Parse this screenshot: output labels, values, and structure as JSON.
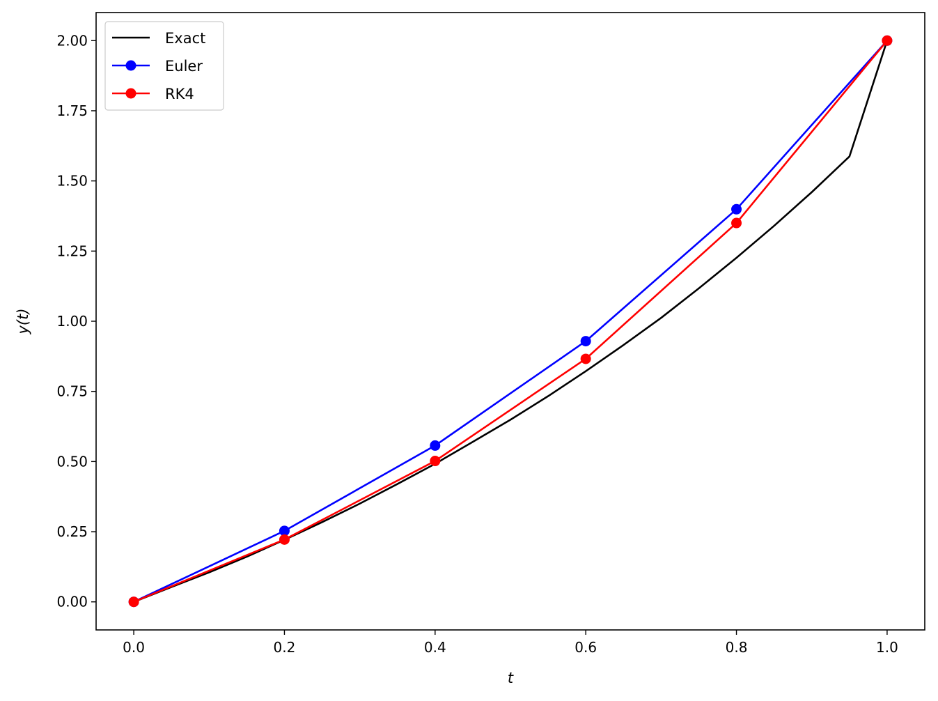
{
  "chart_data": {
    "type": "line",
    "title": "",
    "xlabel": "t",
    "ylabel": "y(t)",
    "xlim": [
      -0.05,
      1.05
    ],
    "ylim": [
      -0.1,
      2.1
    ],
    "xticks": [
      0.0,
      0.2,
      0.4,
      0.6,
      0.8,
      1.0
    ],
    "xtick_labels": [
      "0.0",
      "0.2",
      "0.4",
      "0.6",
      "0.8",
      "1.0"
    ],
    "yticks": [
      0.0,
      0.25,
      0.5,
      0.75,
      1.0,
      1.25,
      1.5,
      1.75,
      2.0
    ],
    "ytick_labels": [
      "0.00",
      "0.25",
      "0.50",
      "0.75",
      "1.00",
      "1.25",
      "1.50",
      "1.75",
      "2.00"
    ],
    "grid": false,
    "legend_position": "top-left",
    "series": [
      {
        "name": "Exact",
        "color": "#000000",
        "markers": false,
        "x": [
          0.0,
          0.05,
          0.1,
          0.15,
          0.2,
          0.25,
          0.3,
          0.35,
          0.4,
          0.45,
          0.5,
          0.55,
          0.6,
          0.65,
          0.7,
          0.75,
          0.8,
          0.85,
          0.9,
          0.95,
          1.0
        ],
        "y": [
          0.0,
          0.053,
          0.105,
          0.161,
          0.221,
          0.284,
          0.35,
          0.42,
          0.492,
          0.57,
          0.649,
          0.733,
          0.822,
          0.915,
          1.012,
          1.117,
          1.226,
          1.34,
          1.46,
          1.587,
          2.0
        ]
      },
      {
        "name": "Euler",
        "color": "#0000ff",
        "markers": true,
        "x": [
          0.0,
          0.2,
          0.4,
          0.6,
          0.8,
          1.0
        ],
        "y": [
          0.0,
          0.253,
          0.557,
          0.929,
          1.399,
          2.0
        ]
      },
      {
        "name": "RK4",
        "color": "#ff0000",
        "markers": true,
        "x": [
          0.0,
          0.2,
          0.4,
          0.6,
          0.8,
          1.0
        ],
        "y": [
          0.0,
          0.222,
          0.502,
          0.866,
          1.35,
          2.0
        ]
      }
    ]
  }
}
